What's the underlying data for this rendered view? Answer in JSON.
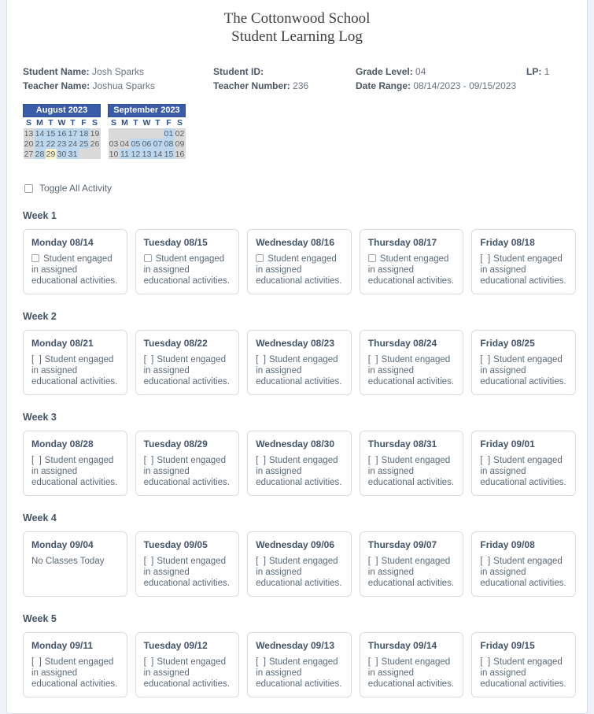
{
  "header": {
    "school": "The Cottonwood School",
    "log_title": "Student Learning Log"
  },
  "info": {
    "student_name_label": "Student Name:",
    "student_name": "Josh Sparks",
    "teacher_name_label": "Teacher Name:",
    "teacher_name": "Joshua Sparks",
    "student_id_label": "Student ID:",
    "student_id": "",
    "teacher_number_label": "Teacher Number:",
    "teacher_number": "236",
    "grade_level_label": "Grade Level:",
    "grade_level": "04",
    "date_range_label": "Date Range:",
    "date_range": "08/14/2023 - 09/15/2023",
    "lp_label": "LP:",
    "lp": "1"
  },
  "colors": {
    "calendar_header": "#3a5ca8",
    "active_day": "#bdd7ee",
    "inactive_day": "#d9d9d9",
    "today_day": "#f8f2c6"
  },
  "calendars": [
    {
      "title": "August 2023",
      "day_headers": [
        "S",
        "M",
        "T",
        "W",
        "T",
        "F",
        "S"
      ],
      "weeks": [
        [
          {
            "d": "13",
            "state": "off"
          },
          {
            "d": "14",
            "state": "on"
          },
          {
            "d": "15",
            "state": "on"
          },
          {
            "d": "16",
            "state": "on"
          },
          {
            "d": "17",
            "state": "on"
          },
          {
            "d": "18",
            "state": "on"
          },
          {
            "d": "19",
            "state": "off"
          }
        ],
        [
          {
            "d": "20",
            "state": "off"
          },
          {
            "d": "21",
            "state": "on"
          },
          {
            "d": "22",
            "state": "on"
          },
          {
            "d": "23",
            "state": "on"
          },
          {
            "d": "24",
            "state": "on"
          },
          {
            "d": "25",
            "state": "on"
          },
          {
            "d": "26",
            "state": "off"
          }
        ],
        [
          {
            "d": "27",
            "state": "off"
          },
          {
            "d": "28",
            "state": "on"
          },
          {
            "d": "29",
            "state": "today"
          },
          {
            "d": "30",
            "state": "on"
          },
          {
            "d": "31",
            "state": "on"
          },
          {
            "d": "",
            "state": "off"
          },
          {
            "d": "",
            "state": "off"
          }
        ]
      ]
    },
    {
      "title": "September 2023",
      "day_headers": [
        "S",
        "M",
        "T",
        "W",
        "T",
        "F",
        "S"
      ],
      "weeks": [
        [
          {
            "d": "",
            "state": "off"
          },
          {
            "d": "",
            "state": "off"
          },
          {
            "d": "",
            "state": "off"
          },
          {
            "d": "",
            "state": "off"
          },
          {
            "d": "",
            "state": "off"
          },
          {
            "d": "01",
            "state": "on"
          },
          {
            "d": "02",
            "state": "off"
          }
        ],
        [
          {
            "d": "03",
            "state": "off"
          },
          {
            "d": "04",
            "state": "off"
          },
          {
            "d": "05",
            "state": "on"
          },
          {
            "d": "06",
            "state": "on"
          },
          {
            "d": "07",
            "state": "on"
          },
          {
            "d": "08",
            "state": "on"
          },
          {
            "d": "09",
            "state": "off"
          }
        ],
        [
          {
            "d": "10",
            "state": "off"
          },
          {
            "d": "11",
            "state": "on"
          },
          {
            "d": "12",
            "state": "on"
          },
          {
            "d": "13",
            "state": "on"
          },
          {
            "d": "14",
            "state": "on"
          },
          {
            "d": "15",
            "state": "on"
          },
          {
            "d": "16",
            "state": "off"
          }
        ]
      ]
    }
  ],
  "toggle_all": {
    "label": "Toggle All Activity",
    "checked": false
  },
  "ui": {
    "brackets_marker": "[  ]"
  },
  "weeks": [
    {
      "label": "Week 1",
      "days": [
        {
          "title": "Monday 08/14",
          "marker": "checkbox",
          "checked": false,
          "text": "Student engaged in assigned educational activities."
        },
        {
          "title": "Tuesday 08/15",
          "marker": "checkbox",
          "checked": false,
          "text": "Student engaged in assigned educational activities."
        },
        {
          "title": "Wednesday 08/16",
          "marker": "checkbox",
          "checked": false,
          "text": "Student engaged in assigned educational activities."
        },
        {
          "title": "Thursday 08/17",
          "marker": "checkbox",
          "checked": false,
          "text": "Student engaged in assigned educational activities."
        },
        {
          "title": "Friday 08/18",
          "marker": "brackets",
          "text": "Student engaged in assigned educational activities."
        }
      ]
    },
    {
      "label": "Week 2",
      "days": [
        {
          "title": "Monday 08/21",
          "marker": "brackets",
          "text": "Student engaged in assigned educational activities."
        },
        {
          "title": "Tuesday 08/22",
          "marker": "brackets",
          "text": "Student engaged in assigned educational activities."
        },
        {
          "title": "Wednesday 08/23",
          "marker": "brackets",
          "text": "Student engaged in assigned educational activities."
        },
        {
          "title": "Thursday 08/24",
          "marker": "brackets",
          "text": "Student engaged in assigned educational activities."
        },
        {
          "title": "Friday 08/25",
          "marker": "brackets",
          "text": "Student engaged in assigned educational activities."
        }
      ]
    },
    {
      "label": "Week 3",
      "days": [
        {
          "title": "Monday 08/28",
          "marker": "brackets",
          "text": "Student engaged in assigned educational activities."
        },
        {
          "title": "Tuesday 08/29",
          "marker": "brackets",
          "text": "Student engaged in assigned educational activities."
        },
        {
          "title": "Wednesday 08/30",
          "marker": "brackets",
          "text": "Student engaged in assigned educational activities."
        },
        {
          "title": "Thursday 08/31",
          "marker": "brackets",
          "text": "Student engaged in assigned educational activities."
        },
        {
          "title": "Friday 09/01",
          "marker": "brackets",
          "text": "Student engaged in assigned educational activities."
        }
      ]
    },
    {
      "label": "Week 4",
      "days": [
        {
          "title": "Monday 09/04",
          "marker": "none",
          "text": "No Classes Today"
        },
        {
          "title": "Tuesday 09/05",
          "marker": "brackets",
          "text": "Student engaged in assigned educational activities."
        },
        {
          "title": "Wednesday 09/06",
          "marker": "brackets",
          "text": "Student engaged in assigned educational activities."
        },
        {
          "title": "Thursday 09/07",
          "marker": "brackets",
          "text": "Student engaged in assigned educational activities."
        },
        {
          "title": "Friday 09/08",
          "marker": "brackets",
          "text": "Student engaged in assigned educational activities."
        }
      ]
    },
    {
      "label": "Week 5",
      "days": [
        {
          "title": "Monday 09/11",
          "marker": "brackets",
          "text": "Student engaged in assigned educational activities."
        },
        {
          "title": "Tuesday 09/12",
          "marker": "brackets",
          "text": "Student engaged in assigned educational activities."
        },
        {
          "title": "Wednesday 09/13",
          "marker": "brackets",
          "text": "Student engaged in assigned educational activities."
        },
        {
          "title": "Thursday 09/14",
          "marker": "brackets",
          "text": "Student engaged in assigned educational activities."
        },
        {
          "title": "Friday 09/15",
          "marker": "brackets",
          "text": "Student engaged in assigned educational activities."
        }
      ]
    }
  ]
}
